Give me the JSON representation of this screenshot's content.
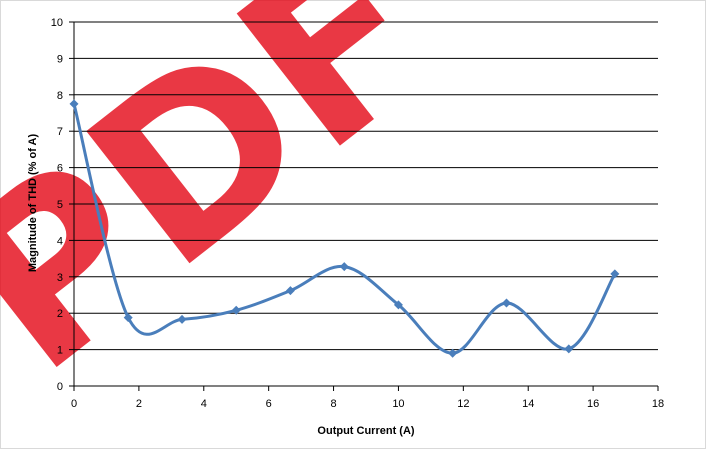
{
  "watermark": {
    "text": "PDF",
    "color": "#e3000f"
  },
  "chart_data": {
    "type": "line",
    "title": "",
    "xlabel": "Output Current (A)",
    "ylabel": "Magnitude of THD (% of A)",
    "xlim": [
      0,
      18
    ],
    "ylim": [
      0,
      10
    ],
    "x_ticks": [
      "0",
      "2",
      "4",
      "6",
      "8",
      "10",
      "12",
      "14",
      "16",
      "18"
    ],
    "y_ticks": [
      "0",
      "1",
      "2",
      "3",
      "4",
      "5",
      "6",
      "7",
      "8",
      "9",
      "10"
    ],
    "grid": "horizontal",
    "legend": "none",
    "smoothed": true,
    "series_color": "#4a7ebb",
    "series": [
      {
        "x": [
          0,
          1.67,
          3.33,
          5.0,
          6.67,
          8.33,
          10.0,
          11.67,
          13.33,
          15.25,
          16.67
        ],
        "y": [
          7.75,
          1.88,
          1.83,
          2.08,
          2.62,
          3.28,
          2.23,
          0.9,
          2.28,
          1.02,
          3.08
        ]
      }
    ]
  }
}
